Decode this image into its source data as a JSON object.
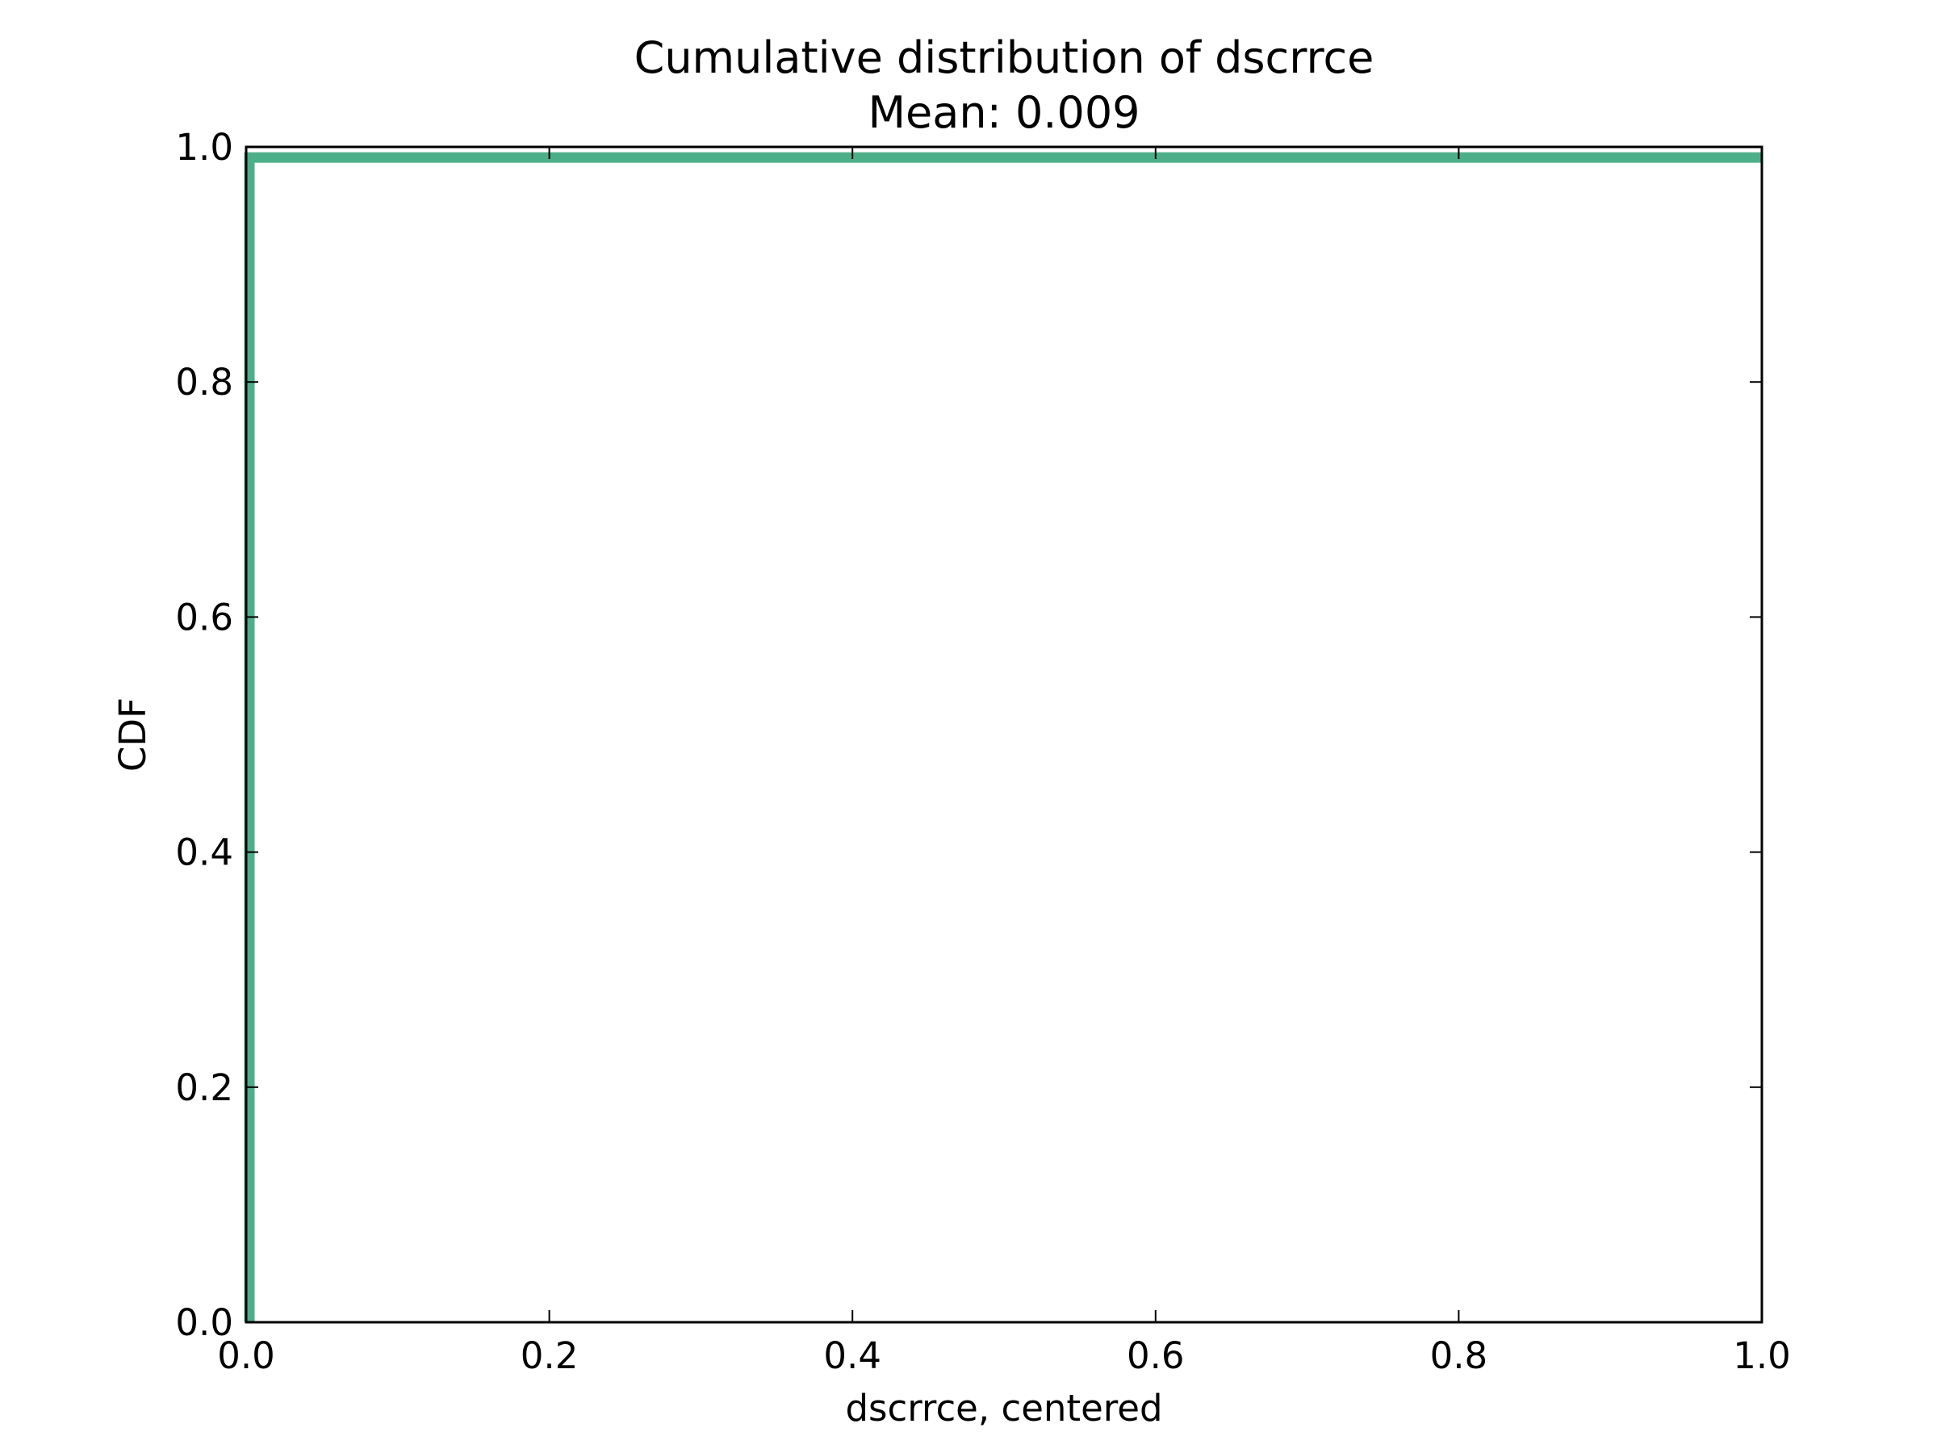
{
  "chart_data": {
    "type": "line",
    "title": "Cumulative distribution of dscrrce",
    "subtitle": "Mean: 0.009",
    "xlabel": "dscrrce, centered",
    "ylabel": "CDF",
    "xlim": [
      0.0,
      1.0
    ],
    "ylim": [
      0.0,
      1.0
    ],
    "xticks": [
      "0.0",
      "0.2",
      "0.4",
      "0.6",
      "0.8",
      "1.0"
    ],
    "yticks": [
      "0.0",
      "0.2",
      "0.4",
      "0.6",
      "0.8",
      "1.0"
    ],
    "grid": false,
    "legend": "none",
    "series": [
      {
        "color": "#4daf8a",
        "x": [
          0.0,
          0.0,
          0.0,
          1.0
        ],
        "y": [
          0.0,
          0.991,
          0.991,
          0.991
        ]
      }
    ]
  }
}
